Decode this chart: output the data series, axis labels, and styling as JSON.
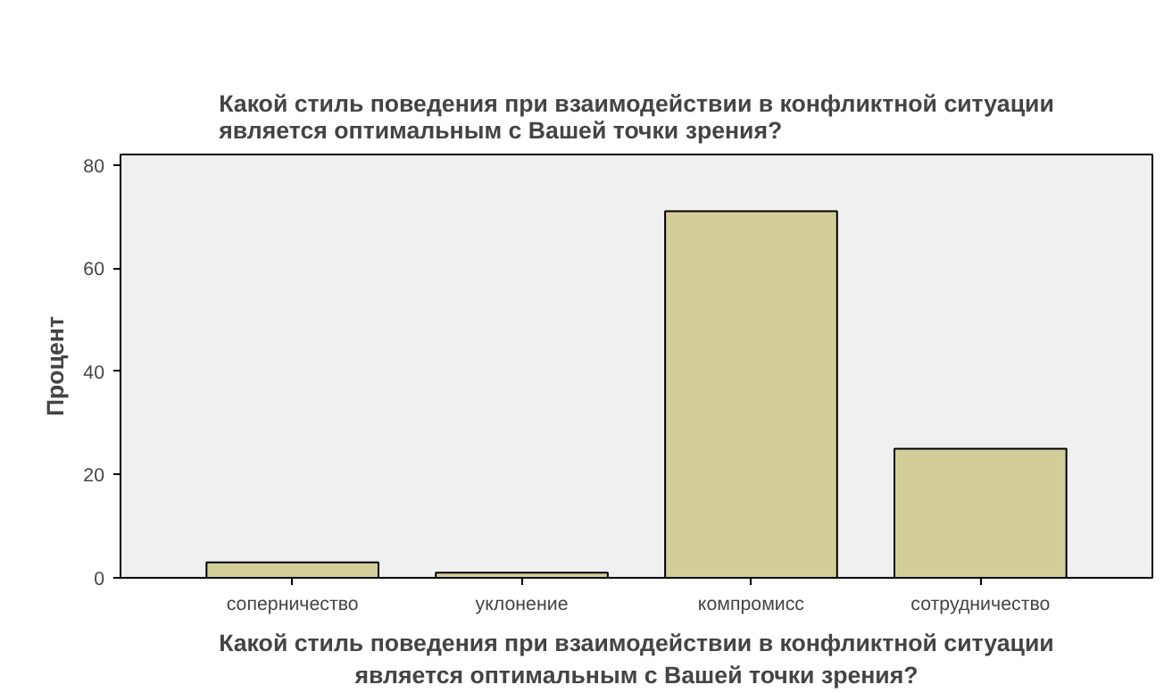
{
  "chart_data": {
    "type": "bar",
    "title": "Какой стиль поведения при взаимодействии в конфликтной ситуации\nявляется оптимальным с Вашей точки зрения?",
    "xlabel": "Какой стиль поведения при взаимодействии в конфликтной ситуации\nявляется оптимальным с Вашей точки зрения?",
    "ylabel": "Процент",
    "categories": [
      "соперничество",
      "уклонение",
      "компромисс",
      "сотрудничество"
    ],
    "values": [
      3,
      1,
      71,
      25
    ],
    "color": "#d3ce99",
    "ylim": [
      0,
      82
    ],
    "yticks": [
      0,
      20,
      40,
      60,
      80
    ],
    "grid": false
  }
}
